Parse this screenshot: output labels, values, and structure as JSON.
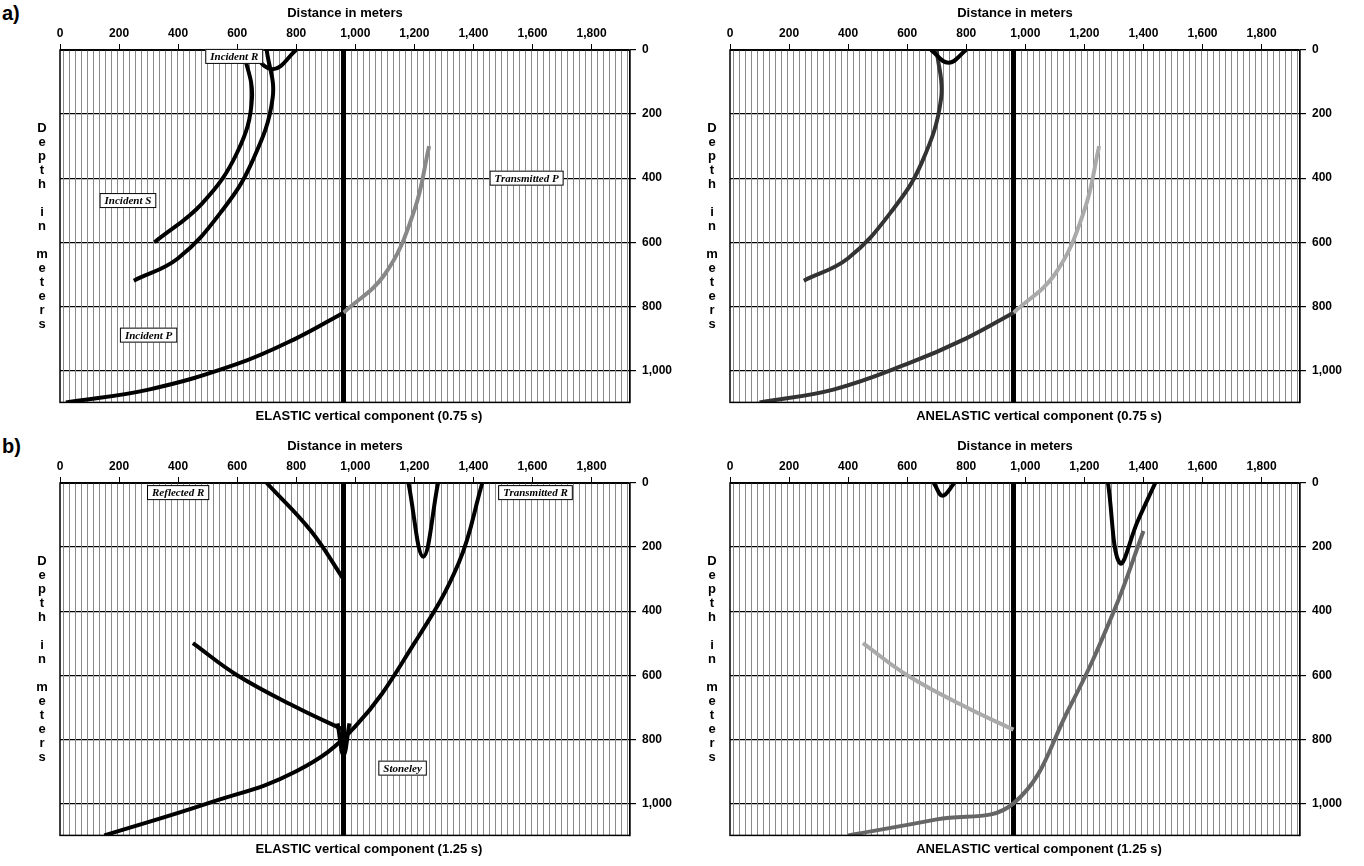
{
  "chart_data": [
    {
      "panel": "a)",
      "type": "line",
      "title": "ELASTIC vertical component (0.75 s)",
      "x_label": "Distance in meters",
      "y_label": "Depth in meters",
      "xlim": [
        0,
        1930
      ],
      "xticks": [
        0,
        200,
        400,
        600,
        800,
        1000,
        1200,
        1400,
        1600,
        1800
      ],
      "ylim": [
        0,
        1100
      ],
      "yticks": [
        0,
        200,
        400,
        600,
        800,
        1000
      ],
      "grid": true,
      "well_x": 960,
      "series": [
        {
          "color": "#000000",
          "x": [
            640,
            720,
            800
          ],
          "values": [
            0,
            60,
            0
          ]
        },
        {
          "color": "#000000",
          "x": [
            700,
            720,
            650,
            550,
            400,
            250
          ],
          "values": [
            0,
            150,
            350,
            500,
            650,
            720
          ]
        },
        {
          "color": "#000000",
          "x": [
            620,
            650,
            600,
            480,
            320
          ],
          "values": [
            0,
            150,
            320,
            480,
            600
          ]
        },
        {
          "color": "#000000",
          "x": [
            20,
            300,
            600,
            800,
            960
          ],
          "values": [
            1100,
            1060,
            980,
            900,
            820
          ]
        },
        {
          "color": "#888888",
          "x": [
            960,
            1100,
            1200,
            1250
          ],
          "values": [
            820,
            700,
            500,
            300
          ]
        }
      ],
      "annotations": [
        {
          "text": "Incident R",
          "x": 590,
          "y": 20
        },
        {
          "text": "Incident S",
          "x": 230,
          "y": 470
        },
        {
          "text": "Incident P",
          "x": 300,
          "y": 890
        },
        {
          "text": "Transmitted P",
          "x": 1580,
          "y": 400
        }
      ]
    },
    {
      "type": "line",
      "title": "ANELASTIC vertical component (0.75 s)",
      "x_label": "Distance in meters",
      "y_label": "Depth in meters",
      "xlim": [
        0,
        1930
      ],
      "xticks": [
        0,
        200,
        400,
        600,
        800,
        1000,
        1200,
        1400,
        1600,
        1800
      ],
      "ylim": [
        0,
        1100
      ],
      "yticks": [
        0,
        200,
        400,
        600,
        800,
        1000
      ],
      "grid": true,
      "well_x": 960,
      "series": [
        {
          "color": "#000000",
          "x": [
            680,
            740,
            800
          ],
          "values": [
            0,
            40,
            0
          ]
        },
        {
          "color": "#333333",
          "x": [
            700,
            715,
            650,
            550,
            400,
            250
          ],
          "values": [
            0,
            150,
            350,
            500,
            650,
            720
          ]
        },
        {
          "color": "#333333",
          "x": [
            100,
            350,
            600,
            800,
            960
          ],
          "values": [
            1100,
            1060,
            980,
            900,
            820
          ]
        },
        {
          "color": "#aaaaaa",
          "x": [
            960,
            1100,
            1200,
            1250
          ],
          "values": [
            820,
            700,
            500,
            300
          ]
        }
      ],
      "annotations": []
    },
    {
      "panel": "b)",
      "type": "line",
      "title": "ELASTIC vertical component (1.25 s)",
      "x_label": "Distance in meters",
      "y_label": "Depth in meters",
      "xlim": [
        0,
        1930
      ],
      "xticks": [
        0,
        200,
        400,
        600,
        800,
        1000,
        1200,
        1400,
        1600,
        1800
      ],
      "ylim": [
        0,
        1100
      ],
      "yticks": [
        0,
        200,
        400,
        600,
        800,
        1000
      ],
      "grid": true,
      "well_x": 960,
      "series": [
        {
          "color": "#000000",
          "x": [
            150,
            500,
            800,
            1000,
            1200,
            1350,
            1430
          ],
          "values": [
            1100,
            1000,
            900,
            760,
            500,
            250,
            0
          ]
        },
        {
          "color": "#000000",
          "x": [
            960,
            800,
            600,
            450
          ],
          "values": [
            770,
            700,
            600,
            500
          ]
        },
        {
          "color": "#000000",
          "x": [
            700,
            850,
            960
          ],
          "values": [
            0,
            150,
            300
          ]
        },
        {
          "color": "#000000",
          "x": [
            1180,
            1230,
            1280
          ],
          "values": [
            0,
            230,
            0
          ]
        },
        {
          "color": "#000000",
          "x": [
            940,
            960,
            980
          ],
          "values": [
            750,
            850,
            750
          ]
        }
      ],
      "annotations": [
        {
          "text": "Reflected R",
          "x": 400,
          "y": 30
        },
        {
          "text": "Transmitted R",
          "x": 1610,
          "y": 30
        },
        {
          "text": "Stoneley",
          "x": 1160,
          "y": 890
        }
      ]
    },
    {
      "type": "line",
      "title": "ANELASTIC vertical component (1.25 s)",
      "x_label": "Distance in meters",
      "y_label": "Depth in meters",
      "xlim": [
        0,
        1930
      ],
      "xticks": [
        0,
        200,
        400,
        600,
        800,
        1000,
        1200,
        1400,
        1600,
        1800
      ],
      "ylim": [
        0,
        1100
      ],
      "yticks": [
        0,
        200,
        400,
        600,
        800,
        1000
      ],
      "grid": true,
      "well_x": 960,
      "series": [
        {
          "color": "#000000",
          "x": [
            1280,
            1320,
            1380,
            1440
          ],
          "values": [
            0,
            250,
            120,
            0
          ]
        },
        {
          "color": "#000000",
          "x": [
            690,
            720,
            760
          ],
          "values": [
            0,
            40,
            0
          ]
        },
        {
          "color": "#666666",
          "x": [
            400,
            700,
            960,
            1150,
            1300,
            1400
          ],
          "values": [
            1100,
            1050,
            1000,
            700,
            400,
            150
          ]
        },
        {
          "color": "#aaaaaa",
          "x": [
            960,
            800,
            600,
            450
          ],
          "values": [
            770,
            700,
            600,
            500
          ]
        }
      ],
      "annotations": []
    }
  ]
}
